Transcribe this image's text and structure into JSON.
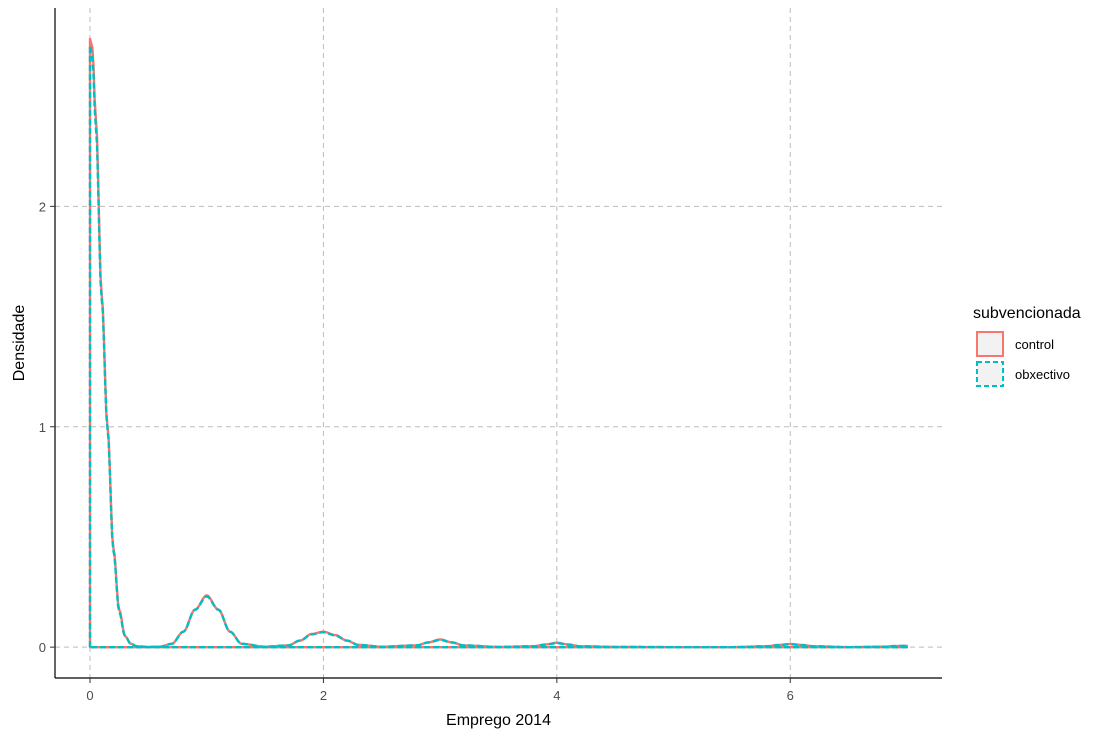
{
  "chart_data": {
    "type": "line",
    "subtype": "density",
    "title": "",
    "xlabel": "Emprego 2014",
    "ylabel": "Densidade",
    "xlim": [
      -0.3,
      7.3
    ],
    "ylim": [
      -0.14,
      2.9
    ],
    "x_ticks": [
      0,
      2,
      4,
      6
    ],
    "x_tick_labels": [
      "0",
      "2",
      "4",
      "6"
    ],
    "y_ticks": [
      0,
      1,
      2
    ],
    "y_tick_labels": [
      "0",
      "1",
      "2"
    ],
    "grid": true,
    "grid_style": "dashed",
    "legend": {
      "title": "subvencionada",
      "position": "right",
      "entries": [
        "control",
        "obxectivo"
      ]
    },
    "x_range": [
      0,
      7
    ],
    "bandwidth": 0.06,
    "series": [
      {
        "name": "control",
        "color": "#F8766D",
        "line_style": "solid",
        "fill": "#F2F2F2",
        "x": [
          0.0,
          0.02,
          0.05,
          0.1,
          0.15,
          0.2,
          0.25,
          0.3,
          0.35,
          0.4,
          0.5,
          0.6,
          0.7,
          0.8,
          0.9,
          1.0,
          1.1,
          1.2,
          1.3,
          1.5,
          1.7,
          1.8,
          1.9,
          2.0,
          2.1,
          2.2,
          2.3,
          2.5,
          2.8,
          2.9,
          3.0,
          3.1,
          3.2,
          3.5,
          3.8,
          3.9,
          4.0,
          4.1,
          4.2,
          4.5,
          5.0,
          5.5,
          5.8,
          5.9,
          6.0,
          6.1,
          6.2,
          6.5,
          6.8,
          6.9,
          7.0
        ],
        "y": [
          2.76,
          2.72,
          2.4,
          1.6,
          1.0,
          0.45,
          0.17,
          0.05,
          0.015,
          0.004,
          0.001,
          0.002,
          0.015,
          0.07,
          0.17,
          0.235,
          0.17,
          0.07,
          0.015,
          0.002,
          0.008,
          0.03,
          0.06,
          0.07,
          0.055,
          0.03,
          0.01,
          0.002,
          0.008,
          0.022,
          0.035,
          0.022,
          0.008,
          0.001,
          0.004,
          0.012,
          0.02,
          0.012,
          0.004,
          0.001,
          0.0,
          0.0,
          0.004,
          0.01,
          0.014,
          0.01,
          0.004,
          0.0,
          0.002,
          0.005,
          0.006
        ]
      },
      {
        "name": "obxectivo",
        "color": "#00BFC4",
        "line_style": "dashed",
        "fill": "#F2F2F2",
        "x": [
          0.0,
          0.02,
          0.05,
          0.1,
          0.15,
          0.2,
          0.25,
          0.3,
          0.35,
          0.4,
          0.5,
          0.6,
          0.7,
          0.8,
          0.9,
          1.0,
          1.1,
          1.2,
          1.3,
          1.5,
          1.7,
          1.8,
          1.9,
          2.0,
          2.1,
          2.2,
          2.3,
          2.5,
          2.8,
          2.9,
          3.0,
          3.1,
          3.2,
          3.5,
          3.8,
          3.9,
          4.0,
          4.1,
          4.2,
          4.5,
          5.0,
          5.5,
          5.8,
          5.9,
          6.0,
          6.1,
          6.2,
          6.5,
          6.8,
          6.9,
          7.0
        ],
        "y": [
          2.73,
          2.68,
          2.36,
          1.58,
          0.99,
          0.44,
          0.16,
          0.05,
          0.015,
          0.004,
          0.001,
          0.002,
          0.015,
          0.07,
          0.17,
          0.23,
          0.17,
          0.07,
          0.015,
          0.002,
          0.008,
          0.03,
          0.058,
          0.068,
          0.053,
          0.03,
          0.01,
          0.002,
          0.008,
          0.021,
          0.033,
          0.021,
          0.008,
          0.001,
          0.004,
          0.011,
          0.018,
          0.011,
          0.004,
          0.001,
          0.0,
          0.0,
          0.004,
          0.009,
          0.013,
          0.009,
          0.004,
          0.0,
          0.002,
          0.005,
          0.006
        ]
      }
    ]
  }
}
